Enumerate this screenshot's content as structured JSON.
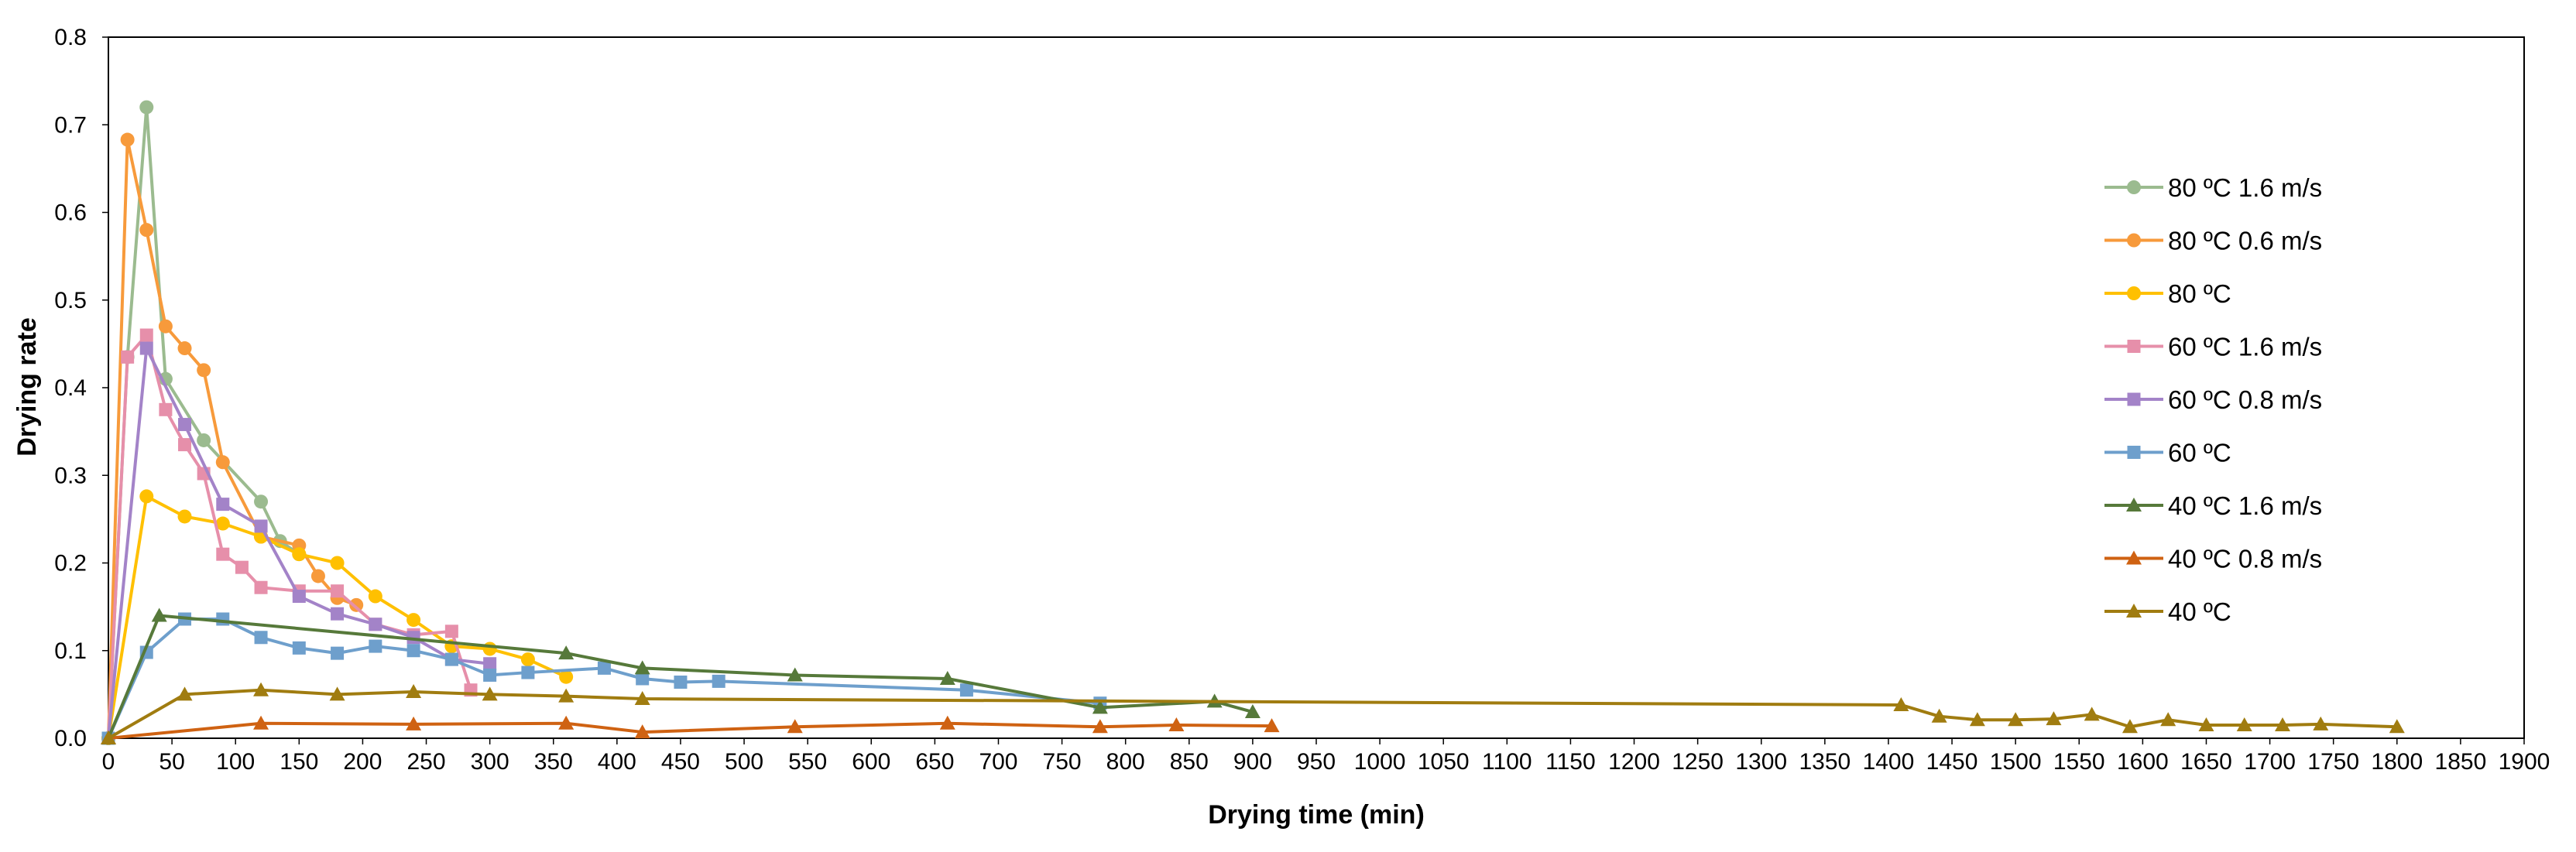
{
  "chart_data": {
    "type": "line",
    "xlabel": "Drying time (min)",
    "ylabel": "Drying rate",
    "xlim": [
      0,
      1900
    ],
    "ylim": [
      0,
      0.8
    ],
    "xticks": [
      0,
      50,
      100,
      150,
      200,
      250,
      300,
      350,
      400,
      450,
      500,
      550,
      600,
      650,
      700,
      750,
      800,
      850,
      900,
      950,
      1000,
      1050,
      1100,
      1150,
      1200,
      1250,
      1300,
      1350,
      1400,
      1450,
      1500,
      1550,
      1600,
      1650,
      1700,
      1750,
      1800,
      1850,
      1900
    ],
    "yticks": [
      0.0,
      0.1,
      0.2,
      0.3,
      0.4,
      0.5,
      0.6,
      0.7,
      0.8
    ],
    "ytick_labels": [
      "0.0",
      "0.1",
      "0.2",
      "0.3",
      "0.4",
      "0.5",
      "0.6",
      "0.7",
      "0.8"
    ],
    "grid": false,
    "legend_position": "right",
    "series": [
      {
        "name": "80 ºC 1.6 m/s",
        "color": "#9BBB8F",
        "marker": "circle",
        "x": [
          0,
          15,
          30,
          45,
          75,
          120,
          135,
          150
        ],
        "y": [
          0,
          0.435,
          0.72,
          0.41,
          0.34,
          0.27,
          0.225,
          0.21
        ]
      },
      {
        "name": "80 ºC 0.6 m/s",
        "color": "#F79A3B",
        "marker": "circle",
        "x": [
          0,
          15,
          30,
          45,
          60,
          75,
          90,
          120,
          150,
          165,
          180,
          195
        ],
        "y": [
          0,
          0.683,
          0.58,
          0.47,
          0.445,
          0.42,
          0.315,
          0.23,
          0.22,
          0.185,
          0.16,
          0.152
        ]
      },
      {
        "name": "80 ºC",
        "color": "#FFC000",
        "marker": "circle",
        "x": [
          0,
          30,
          60,
          90,
          120,
          150,
          180,
          210,
          240,
          270,
          300,
          330,
          360
        ],
        "y": [
          0,
          0.276,
          0.253,
          0.245,
          0.23,
          0.21,
          0.2,
          0.162,
          0.135,
          0.105,
          0.102,
          0.09,
          0.07
        ]
      },
      {
        "name": "60 ºC 1.6 m/s",
        "color": "#E68FAA",
        "marker": "square",
        "x": [
          0,
          15,
          30,
          45,
          60,
          75,
          90,
          105,
          120,
          150,
          180,
          210,
          240,
          270,
          285
        ],
        "y": [
          0,
          0.435,
          0.46,
          0.375,
          0.335,
          0.302,
          0.21,
          0.195,
          0.172,
          0.168,
          0.168,
          0.13,
          0.118,
          0.122,
          0.055
        ]
      },
      {
        "name": "60 ºC 0.8 m/s",
        "color": "#A383C8",
        "marker": "square",
        "x": [
          0,
          30,
          60,
          90,
          120,
          150,
          180,
          210,
          240,
          270,
          300
        ],
        "y": [
          0,
          0.445,
          0.358,
          0.267,
          0.242,
          0.162,
          0.142,
          0.13,
          0.115,
          0.09,
          0.085
        ]
      },
      {
        "name": "60 ºC",
        "color": "#6E9FCC",
        "marker": "square",
        "x": [
          0,
          30,
          60,
          90,
          120,
          150,
          180,
          210,
          240,
          270,
          300,
          330,
          390,
          420,
          450,
          480,
          675,
          780
        ],
        "y": [
          0,
          0.098,
          0.136,
          0.136,
          0.115,
          0.103,
          0.097,
          0.105,
          0.1,
          0.09,
          0.072,
          0.075,
          0.08,
          0.068,
          0.064,
          0.065,
          0.055,
          0.04
        ]
      },
      {
        "name": "40 ºC 1.6 m/s",
        "color": "#56793A",
        "marker": "triangle",
        "x": [
          0,
          40,
          360,
          420,
          540,
          660,
          780,
          870,
          900
        ],
        "y": [
          0,
          0.14,
          0.097,
          0.08,
          0.072,
          0.068,
          0.035,
          0.042,
          0.03
        ]
      },
      {
        "name": "40 ºC 0.8 m/s",
        "color": "#CF6212",
        "marker": "triangle",
        "x": [
          0,
          120,
          240,
          360,
          420,
          540,
          660,
          780,
          840,
          915
        ],
        "y": [
          0,
          0.017,
          0.016,
          0.017,
          0.007,
          0.013,
          0.017,
          0.013,
          0.015,
          0.014
        ]
      },
      {
        "name": "40 ºC",
        "color": "#A07C10",
        "marker": "triangle",
        "x": [
          0,
          60,
          120,
          180,
          240,
          300,
          360,
          420,
          1410,
          1440,
          1470,
          1500,
          1530,
          1560,
          1590,
          1620,
          1650,
          1680,
          1710,
          1740,
          1800
        ],
        "y": [
          0,
          0.05,
          0.055,
          0.05,
          0.053,
          0.05,
          0.048,
          0.045,
          0.038,
          0.025,
          0.021,
          0.021,
          0.022,
          0.027,
          0.013,
          0.021,
          0.015,
          0.015,
          0.015,
          0.016,
          0.013
        ]
      }
    ]
  }
}
